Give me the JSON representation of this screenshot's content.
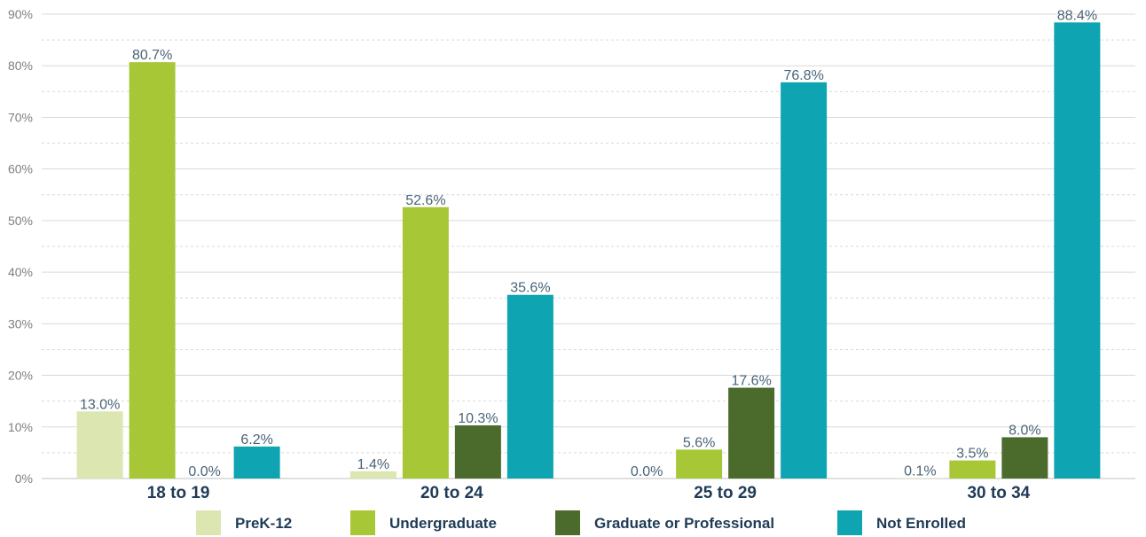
{
  "chart_data": {
    "type": "bar",
    "categories": [
      "18 to 19",
      "20 to 24",
      "25 to 29",
      "30 to 34"
    ],
    "series": [
      {
        "name": "PreK-12",
        "color": "#dbe6b1",
        "values": [
          13.0,
          1.4,
          0.0,
          0.1
        ]
      },
      {
        "name": "Undergraduate",
        "color": "#a8c736",
        "values": [
          80.7,
          52.6,
          5.6,
          3.5
        ]
      },
      {
        "name": "Graduate or Professional",
        "color": "#4a6b2c",
        "values": [
          0.0,
          10.3,
          17.6,
          8.0
        ]
      },
      {
        "name": "Not Enrolled",
        "color": "#0fa4b1",
        "values": [
          6.2,
          35.6,
          76.8,
          88.4
        ]
      }
    ],
    "data_labels": [
      [
        "13.0%",
        "80.7%",
        "0.0%",
        "6.2%"
      ],
      [
        "1.4%",
        "52.6%",
        "10.3%",
        "35.6%"
      ],
      [
        "0.0%",
        "5.6%",
        "17.6%",
        "76.8%"
      ],
      [
        "0.1%",
        "3.5%",
        "8.0%",
        "88.4%"
      ]
    ],
    "yticks": [
      "0%",
      "10%",
      "20%",
      "30%",
      "40%",
      "50%",
      "60%",
      "70%",
      "80%",
      "90%"
    ],
    "ylim": [
      0,
      90
    ],
    "grid": true,
    "legend_position": "bottom",
    "title": "",
    "xlabel": "",
    "ylabel": ""
  }
}
